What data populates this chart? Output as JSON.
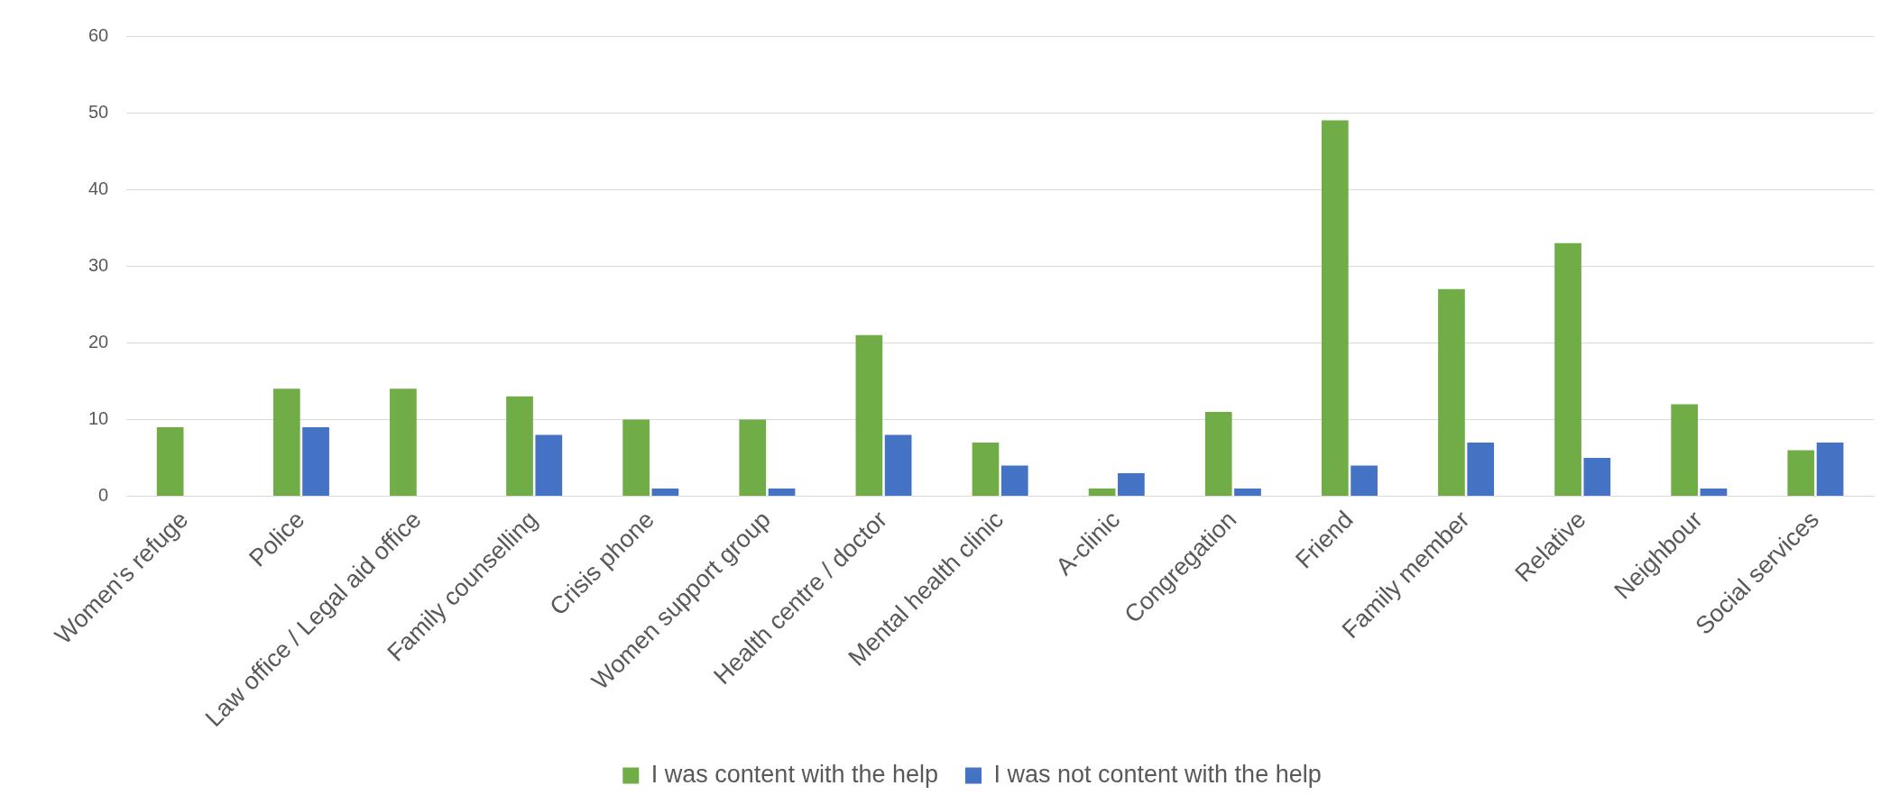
{
  "chart_data": {
    "type": "bar",
    "categories": [
      "Women's refuge",
      "Police",
      "Law office / Legal aid office",
      "Family counselling",
      "Crisis phone",
      "Women support group",
      "Health centre / doctor",
      "Mental health clinic",
      "A-clinic",
      "Congregation",
      "Friend",
      "Family member",
      "Relative",
      "Neighbour",
      "Social services"
    ],
    "series": [
      {
        "name": "I was content with the help",
        "color": "#70ad47",
        "values": [
          9,
          14,
          14,
          13,
          10,
          10,
          21,
          7,
          1,
          11,
          49,
          27,
          33,
          12,
          6
        ]
      },
      {
        "name": "I was not content with the help",
        "color": "#4472c4",
        "values": [
          0,
          9,
          0,
          8,
          1,
          1,
          8,
          4,
          3,
          1,
          4,
          7,
          5,
          1,
          7
        ]
      }
    ],
    "ylim": [
      0,
      60
    ],
    "yticks": [
      0,
      10,
      20,
      30,
      40,
      50,
      60
    ],
    "grid": "y",
    "legend": "bottom"
  }
}
